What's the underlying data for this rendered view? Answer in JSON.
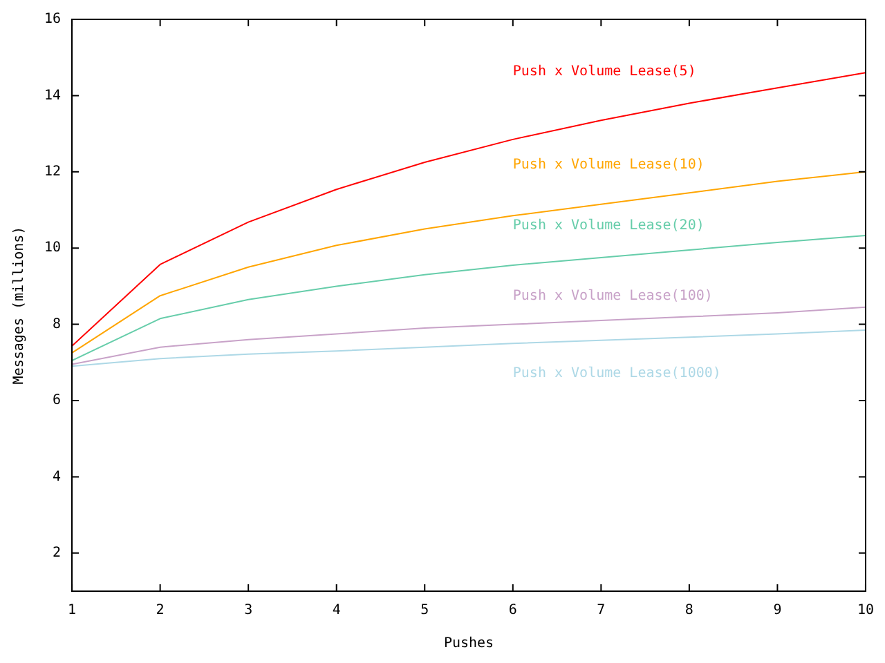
{
  "chart_data": {
    "type": "line",
    "xlabel": "Pushes",
    "ylabel": "Messages (millions)",
    "x": [
      1,
      2,
      3,
      4,
      5,
      6,
      7,
      8,
      9,
      10
    ],
    "xlim": [
      1,
      10
    ],
    "xticks": [
      1,
      2,
      3,
      4,
      5,
      6,
      7,
      8,
      9,
      10
    ],
    "ylim": [
      1,
      16
    ],
    "yticks": [
      2,
      4,
      6,
      8,
      10,
      12,
      14,
      16
    ],
    "grid": false,
    "legend": false,
    "marker": "none",
    "line_style": "solid",
    "series": [
      {
        "name": "Push x Volume Lease(5)",
        "color": "#ff0000",
        "values": [
          7.43,
          9.57,
          10.68,
          11.54,
          12.25,
          12.85,
          13.35,
          13.8,
          14.2,
          14.6
        ]
      },
      {
        "name": "Push x Volume Lease(10)",
        "color": "#ffa500",
        "values": [
          7.25,
          8.75,
          9.5,
          10.07,
          10.5,
          10.85,
          11.15,
          11.45,
          11.75,
          12.0
        ]
      },
      {
        "name": "Push x Volume Lease(20)",
        "color": "#66cdaa",
        "values": [
          7.05,
          8.15,
          8.65,
          9.0,
          9.3,
          9.55,
          9.75,
          9.95,
          10.15,
          10.33
        ]
      },
      {
        "name": "Push x Volume Lease(100)",
        "color": "#c8a2c8",
        "values": [
          6.95,
          7.4,
          7.6,
          7.75,
          7.9,
          8.0,
          8.1,
          8.2,
          8.3,
          8.45
        ]
      },
      {
        "name": "Push x Volume Lease(1000)",
        "color": "#add8e6",
        "values": [
          6.9,
          7.1,
          7.22,
          7.3,
          7.4,
          7.5,
          7.58,
          7.66,
          7.75,
          7.85
        ]
      }
    ]
  }
}
